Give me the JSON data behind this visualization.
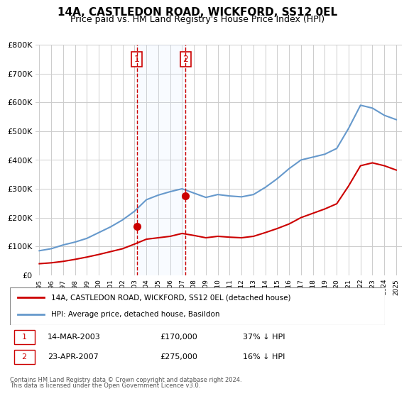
{
  "title": "14A, CASTLEDON ROAD, WICKFORD, SS12 0EL",
  "subtitle": "Price paid vs. HM Land Registry's House Price Index (HPI)",
  "legend_line1": "14A, CASTLEDON ROAD, WICKFORD, SS12 0EL (detached house)",
  "legend_line2": "HPI: Average price, detached house, Basildon",
  "footnote1": "Contains HM Land Registry data © Crown copyright and database right 2024.",
  "footnote2": "This data is licensed under the Open Government Licence v3.0.",
  "sale1_label": "1",
  "sale1_date": "14-MAR-2003",
  "sale1_price": "£170,000",
  "sale1_hpi": "37% ↓ HPI",
  "sale2_label": "2",
  "sale2_date": "23-APR-2007",
  "sale2_price": "£275,000",
  "sale2_hpi": "16% ↓ HPI",
  "red_line_color": "#cc0000",
  "blue_line_color": "#6699cc",
  "shade_color": "#ddeeff",
  "vline_color": "#cc0000",
  "marker_box_color": "#cc0000",
  "ylim": [
    0,
    800000
  ],
  "yticks": [
    0,
    100000,
    200000,
    300000,
    400000,
    500000,
    600000,
    700000,
    800000
  ],
  "ytick_labels": [
    "£0",
    "£100K",
    "£200K",
    "£300K",
    "£400K",
    "£500K",
    "£600K",
    "£700K",
    "£800K"
  ],
  "sale1_year": 2003.2,
  "sale2_year": 2007.3,
  "sale1_value": 170000,
  "sale2_value": 275000,
  "hpi_years": [
    1995,
    1996,
    1997,
    1998,
    1999,
    2000,
    2001,
    2002,
    2003,
    2004,
    2005,
    2006,
    2007,
    2008,
    2009,
    2010,
    2011,
    2012,
    2013,
    2014,
    2015,
    2016,
    2017,
    2018,
    2019,
    2020,
    2021,
    2022,
    2023,
    2024,
    2025
  ],
  "hpi_values": [
    85000,
    92000,
    105000,
    115000,
    128000,
    148000,
    168000,
    192000,
    222000,
    262000,
    278000,
    290000,
    300000,
    285000,
    270000,
    280000,
    275000,
    272000,
    280000,
    305000,
    335000,
    370000,
    400000,
    410000,
    420000,
    440000,
    510000,
    590000,
    580000,
    555000,
    540000
  ],
  "price_years": [
    1995,
    1996,
    1997,
    1998,
    1999,
    2000,
    2001,
    2002,
    2003,
    2004,
    2005,
    2006,
    2007,
    2008,
    2009,
    2010,
    2011,
    2012,
    2013,
    2014,
    2015,
    2016,
    2017,
    2018,
    2019,
    2020,
    2021,
    2022,
    2023,
    2024,
    2025
  ],
  "price_values": [
    40000,
    43000,
    48000,
    55000,
    63000,
    72000,
    82000,
    92000,
    108000,
    125000,
    130000,
    135000,
    145000,
    138000,
    130000,
    135000,
    132000,
    130000,
    135000,
    148000,
    162000,
    178000,
    200000,
    215000,
    230000,
    248000,
    310000,
    380000,
    390000,
    380000,
    365000
  ],
  "xlim_start": 1995,
  "xlim_end": 2025.5
}
